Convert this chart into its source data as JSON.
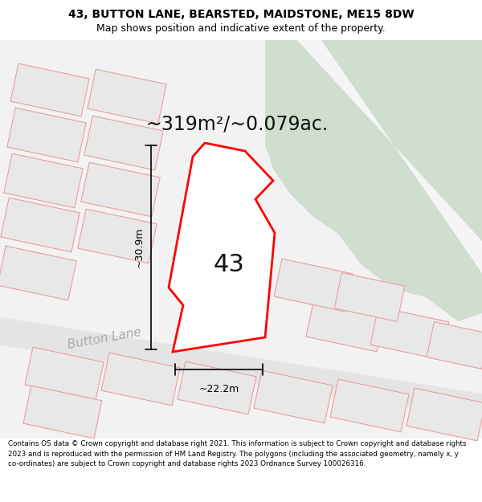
{
  "title_line1": "43, BUTTON LANE, BEARSTED, MAIDSTONE, ME15 8DW",
  "title_line2": "Map shows position and indicative extent of the property.",
  "area_label": "~319m²/~0.079ac.",
  "number_label": "43",
  "dim_height": "~30.9m",
  "dim_width": "~22.2m",
  "street_label": "Button Lane",
  "footer_text": "Contains OS data © Crown copyright and database right 2021. This information is subject to Crown copyright and database rights 2023 and is reproduced with the permission of HM Land Registry. The polygons (including the associated geometry, namely x, y co-ordinates) are subject to Crown copyright and database rights 2023 Ordnance Survey 100026316.",
  "map_bg": "#f2f2f2",
  "green_area_color": "#cfdecf",
  "plot_fill": "#ffffff",
  "plot_edge": "#ff0000",
  "other_plot_fill": "#e8e8e8",
  "other_plot_edge": "#e8a0a0",
  "road_color": "#ffffff",
  "title_color": "#000000",
  "footer_color": "#000000",
  "title_fontsize": 10,
  "subtitle_fontsize": 9,
  "area_fontsize": 17,
  "number_fontsize": 22,
  "dim_fontsize": 9,
  "street_fontsize": 11
}
